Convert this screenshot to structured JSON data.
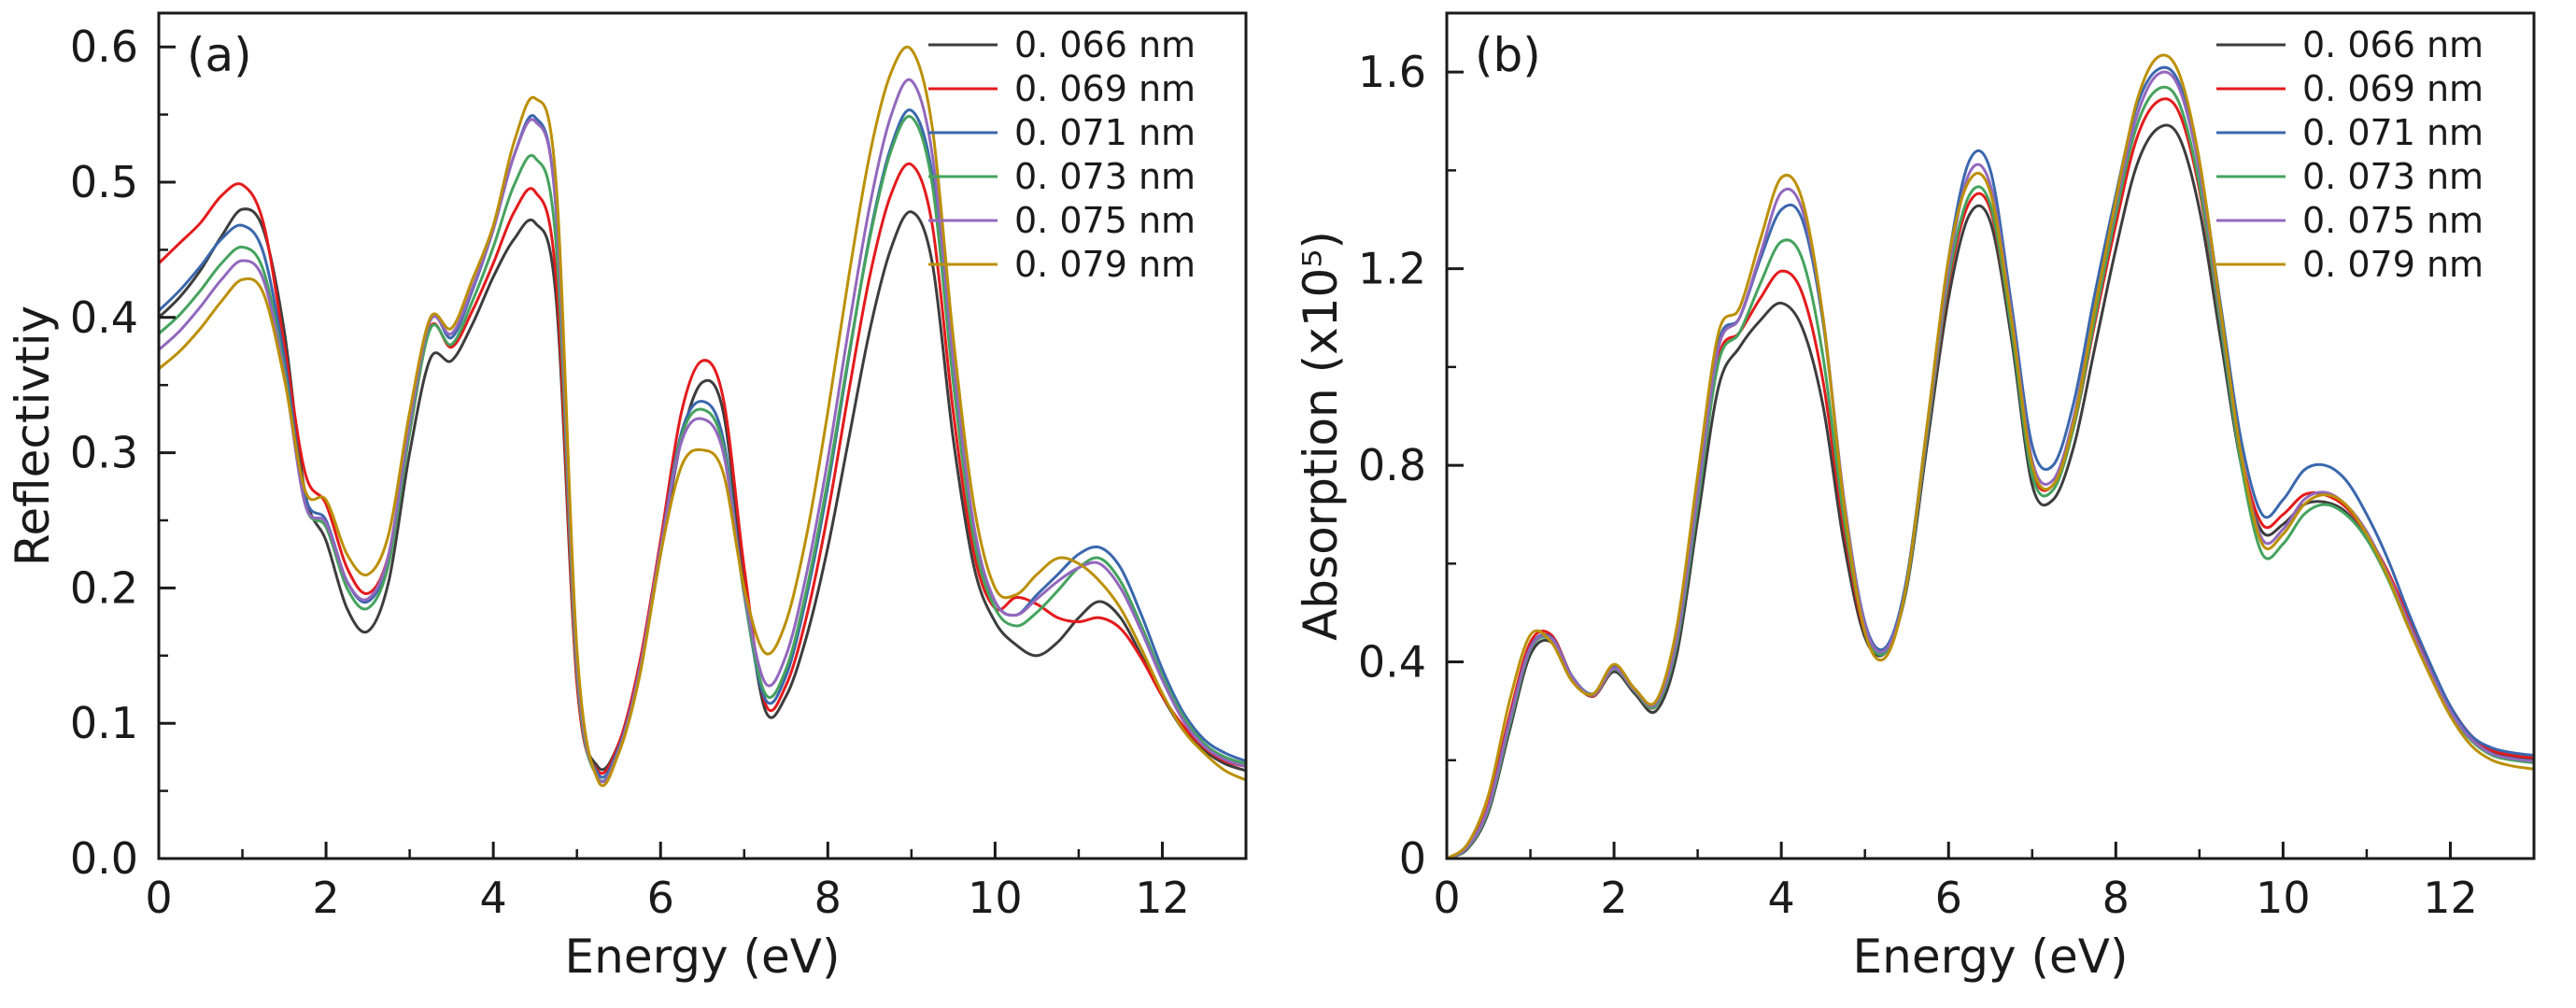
{
  "style": {
    "background": "#ffffff",
    "frame_color": "#1a1a1a",
    "text_color": "#1a1a1a"
  },
  "chart_data": [
    {
      "type": "line",
      "panel_label": "(a)",
      "xlabel": "Energy (eV)",
      "ylabel": "Reflectivtiy",
      "xlim": [
        0,
        13
      ],
      "ylim": [
        0,
        0.625
      ],
      "xtick_vals": [
        0,
        2,
        4,
        6,
        8,
        10,
        12
      ],
      "xtick_labels": [
        "0",
        "2",
        "4",
        "6",
        "8",
        "10",
        "12"
      ],
      "ytick_vals": [
        0.0,
        0.1,
        0.2,
        0.3,
        0.4,
        0.5,
        0.6
      ],
      "ytick_labels": [
        "0.0",
        "0.1",
        "0.2",
        "0.3",
        "0.4",
        "0.5",
        "0.6"
      ],
      "xminor_vals": [
        1,
        3,
        5,
        7,
        9,
        11,
        13
      ],
      "yminor_vals": [
        0.05,
        0.15,
        0.25,
        0.35,
        0.45,
        0.55
      ],
      "grid": false,
      "legend_position": "top-right",
      "x": [
        0,
        0.25,
        0.5,
        0.75,
        1,
        1.25,
        1.5,
        1.75,
        2,
        2.25,
        2.5,
        2.75,
        3,
        3.25,
        3.5,
        3.75,
        4,
        4.25,
        4.5,
        4.75,
        5,
        5.25,
        5.5,
        5.75,
        6,
        6.25,
        6.5,
        6.75,
        7,
        7.25,
        7.5,
        7.75,
        8,
        8.25,
        8.5,
        8.75,
        9,
        9.25,
        9.5,
        9.75,
        10,
        10.25,
        10.5,
        10.75,
        11,
        11.25,
        11.5,
        11.75,
        12,
        12.25,
        12.5,
        12.75,
        13
      ],
      "series": [
        {
          "name": "0. 066 nm",
          "color": "#3d3d3d",
          "values": [
            0.4,
            0.415,
            0.435,
            0.46,
            0.48,
            0.465,
            0.39,
            0.27,
            0.235,
            0.185,
            0.168,
            0.205,
            0.3,
            0.37,
            0.368,
            0.395,
            0.43,
            0.458,
            0.47,
            0.415,
            0.13,
            0.068,
            0.085,
            0.14,
            0.225,
            0.31,
            0.352,
            0.33,
            0.205,
            0.11,
            0.12,
            0.165,
            0.23,
            0.31,
            0.39,
            0.45,
            0.478,
            0.44,
            0.31,
            0.215,
            0.175,
            0.158,
            0.15,
            0.16,
            0.178,
            0.19,
            0.178,
            0.15,
            0.12,
            0.095,
            0.08,
            0.07,
            0.065
          ]
        },
        {
          "name": "0. 069 nm",
          "color": "#e41a1c",
          "values": [
            0.44,
            0.455,
            0.47,
            0.49,
            0.498,
            0.47,
            0.38,
            0.285,
            0.262,
            0.215,
            0.196,
            0.225,
            0.315,
            0.393,
            0.378,
            0.405,
            0.44,
            0.478,
            0.493,
            0.43,
            0.13,
            0.065,
            0.085,
            0.145,
            0.235,
            0.33,
            0.368,
            0.34,
            0.215,
            0.115,
            0.128,
            0.18,
            0.255,
            0.345,
            0.43,
            0.49,
            0.513,
            0.468,
            0.33,
            0.225,
            0.185,
            0.193,
            0.188,
            0.178,
            0.175,
            0.178,
            0.17,
            0.148,
            0.12,
            0.098,
            0.082,
            0.072,
            0.068
          ]
        },
        {
          "name": "0. 071 nm",
          "color": "#3a67ad",
          "values": [
            0.405,
            0.42,
            0.438,
            0.458,
            0.468,
            0.448,
            0.37,
            0.268,
            0.25,
            0.205,
            0.19,
            0.222,
            0.32,
            0.4,
            0.385,
            0.42,
            0.465,
            0.52,
            0.548,
            0.48,
            0.14,
            0.063,
            0.082,
            0.14,
            0.23,
            0.315,
            0.338,
            0.31,
            0.195,
            0.118,
            0.135,
            0.195,
            0.275,
            0.37,
            0.46,
            0.525,
            0.553,
            0.505,
            0.36,
            0.24,
            0.19,
            0.18,
            0.195,
            0.21,
            0.225,
            0.23,
            0.215,
            0.18,
            0.14,
            0.108,
            0.088,
            0.078,
            0.072
          ]
        },
        {
          "name": "0. 073 nm",
          "color": "#45a35e",
          "values": [
            0.388,
            0.402,
            0.42,
            0.44,
            0.452,
            0.435,
            0.362,
            0.262,
            0.245,
            0.2,
            0.185,
            0.218,
            0.315,
            0.392,
            0.38,
            0.412,
            0.452,
            0.498,
            0.518,
            0.455,
            0.138,
            0.06,
            0.08,
            0.138,
            0.228,
            0.312,
            0.332,
            0.305,
            0.195,
            0.122,
            0.14,
            0.2,
            0.28,
            0.372,
            0.458,
            0.522,
            0.548,
            0.498,
            0.352,
            0.235,
            0.185,
            0.172,
            0.182,
            0.198,
            0.215,
            0.222,
            0.205,
            0.172,
            0.135,
            0.105,
            0.085,
            0.075,
            0.07
          ]
        },
        {
          "name": "0. 075 nm",
          "color": "#9268bd",
          "values": [
            0.376,
            0.39,
            0.408,
            0.428,
            0.442,
            0.428,
            0.358,
            0.262,
            0.248,
            0.205,
            0.192,
            0.225,
            0.322,
            0.398,
            0.388,
            0.422,
            0.465,
            0.52,
            0.545,
            0.48,
            0.145,
            0.06,
            0.08,
            0.14,
            0.23,
            0.308,
            0.325,
            0.3,
            0.198,
            0.13,
            0.15,
            0.212,
            0.295,
            0.392,
            0.482,
            0.548,
            0.575,
            0.52,
            0.368,
            0.245,
            0.19,
            0.18,
            0.192,
            0.205,
            0.215,
            0.218,
            0.2,
            0.168,
            0.132,
            0.102,
            0.083,
            0.073,
            0.068
          ]
        },
        {
          "name": "0. 079 nm",
          "color": "#bc9005",
          "values": [
            0.362,
            0.375,
            0.392,
            0.412,
            0.428,
            0.418,
            0.355,
            0.272,
            0.265,
            0.225,
            0.21,
            0.24,
            0.33,
            0.4,
            0.392,
            0.428,
            0.468,
            0.53,
            0.562,
            0.5,
            0.155,
            0.058,
            0.078,
            0.135,
            0.225,
            0.29,
            0.302,
            0.285,
            0.2,
            0.152,
            0.175,
            0.24,
            0.33,
            0.43,
            0.52,
            0.58,
            0.598,
            0.54,
            0.385,
            0.26,
            0.2,
            0.195,
            0.21,
            0.222,
            0.218,
            0.205,
            0.185,
            0.155,
            0.122,
            0.095,
            0.078,
            0.065,
            0.058
          ]
        }
      ]
    },
    {
      "type": "line",
      "panel_label": "(b)",
      "xlabel": "Energy (eV)",
      "ylabel": "Absorption (x10⁵)",
      "xlim": [
        0,
        13
      ],
      "ylim": [
        0,
        1.72
      ],
      "xtick_vals": [
        0,
        2,
        4,
        6,
        8,
        10,
        12
      ],
      "xtick_labels": [
        "0",
        "2",
        "4",
        "6",
        "8",
        "10",
        "12"
      ],
      "ytick_vals": [
        0,
        0.4,
        0.8,
        1.2,
        1.6
      ],
      "ytick_labels": [
        "0",
        "0.4",
        "0.8",
        "1.2",
        "1.6"
      ],
      "xminor_vals": [
        1,
        3,
        5,
        7,
        9,
        11,
        13
      ],
      "yminor_vals": [
        0.2,
        0.6,
        1.0,
        1.4
      ],
      "grid": false,
      "legend_position": "top-right",
      "x": [
        0,
        0.25,
        0.5,
        0.75,
        1,
        1.25,
        1.5,
        1.75,
        2,
        2.25,
        2.5,
        2.75,
        3,
        3.25,
        3.5,
        3.75,
        4,
        4.25,
        4.5,
        4.75,
        5,
        5.25,
        5.5,
        5.75,
        6,
        6.25,
        6.5,
        6.75,
        7,
        7.25,
        7.5,
        7.75,
        8,
        8.25,
        8.5,
        8.75,
        9,
        9.25,
        9.5,
        9.75,
        10,
        10.25,
        10.5,
        10.75,
        11,
        11.25,
        11.5,
        11.75,
        12,
        12.25,
        12.5,
        12.75,
        13
      ],
      "series": [
        {
          "name": "0. 066 nm",
          "color": "#3d3d3d",
          "values": [
            0.0,
            0.02,
            0.095,
            0.26,
            0.415,
            0.44,
            0.365,
            0.33,
            0.38,
            0.335,
            0.3,
            0.415,
            0.69,
            0.96,
            1.04,
            1.095,
            1.13,
            1.08,
            0.92,
            0.64,
            0.45,
            0.42,
            0.55,
            0.85,
            1.14,
            1.31,
            1.295,
            1.06,
            0.76,
            0.73,
            0.84,
            1.04,
            1.24,
            1.41,
            1.485,
            1.47,
            1.32,
            1.06,
            0.8,
            0.665,
            0.68,
            0.72,
            0.725,
            0.705,
            0.65,
            0.575,
            0.48,
            0.385,
            0.3,
            0.245,
            0.215,
            0.205,
            0.2
          ]
        },
        {
          "name": "0. 069 nm",
          "color": "#e41a1c",
          "values": [
            0.0,
            0.025,
            0.11,
            0.29,
            0.44,
            0.455,
            0.37,
            0.33,
            0.385,
            0.34,
            0.31,
            0.44,
            0.73,
            1.02,
            1.07,
            1.14,
            1.195,
            1.15,
            0.97,
            0.67,
            0.46,
            0.425,
            0.56,
            0.87,
            1.17,
            1.335,
            1.32,
            1.08,
            0.79,
            0.76,
            0.88,
            1.09,
            1.29,
            1.465,
            1.54,
            1.52,
            1.36,
            1.09,
            0.82,
            0.68,
            0.7,
            0.74,
            0.74,
            0.715,
            0.66,
            0.585,
            0.49,
            0.395,
            0.31,
            0.25,
            0.22,
            0.21,
            0.205
          ]
        },
        {
          "name": "0. 071 nm",
          "color": "#3a67ad",
          "values": [
            0.0,
            0.025,
            0.105,
            0.28,
            0.43,
            0.45,
            0.37,
            0.335,
            0.39,
            0.345,
            0.315,
            0.45,
            0.75,
            1.05,
            1.1,
            1.22,
            1.32,
            1.3,
            1.09,
            0.73,
            0.48,
            0.43,
            0.57,
            0.89,
            1.22,
            1.42,
            1.4,
            1.13,
            0.84,
            0.8,
            0.93,
            1.15,
            1.35,
            1.53,
            1.605,
            1.58,
            1.41,
            1.13,
            0.85,
            0.7,
            0.73,
            0.79,
            0.8,
            0.77,
            0.7,
            0.61,
            0.5,
            0.4,
            0.31,
            0.25,
            0.225,
            0.215,
            0.21
          ]
        },
        {
          "name": "0. 073 nm",
          "color": "#45a35e",
          "values": [
            0.0,
            0.022,
            0.1,
            0.27,
            0.425,
            0.445,
            0.368,
            0.332,
            0.385,
            0.34,
            0.31,
            0.435,
            0.72,
            1.01,
            1.07,
            1.17,
            1.255,
            1.22,
            1.02,
            0.69,
            0.465,
            0.42,
            0.555,
            0.87,
            1.18,
            1.35,
            1.33,
            1.08,
            0.78,
            0.75,
            0.88,
            1.1,
            1.31,
            1.49,
            1.565,
            1.54,
            1.37,
            1.09,
            0.8,
            0.62,
            0.64,
            0.7,
            0.72,
            0.7,
            0.65,
            0.57,
            0.47,
            0.38,
            0.295,
            0.24,
            0.21,
            0.2,
            0.195
          ]
        },
        {
          "name": "0. 075 nm",
          "color": "#9268bd",
          "values": [
            0.0,
            0.024,
            0.105,
            0.278,
            0.428,
            0.448,
            0.368,
            0.333,
            0.387,
            0.342,
            0.315,
            0.445,
            0.74,
            1.04,
            1.1,
            1.23,
            1.355,
            1.32,
            1.1,
            0.73,
            0.475,
            0.425,
            0.56,
            0.88,
            1.2,
            1.395,
            1.37,
            1.11,
            0.81,
            0.77,
            0.9,
            1.12,
            1.33,
            1.51,
            1.595,
            1.57,
            1.4,
            1.11,
            0.82,
            0.65,
            0.67,
            0.73,
            0.745,
            0.72,
            0.665,
            0.58,
            0.48,
            0.385,
            0.3,
            0.243,
            0.213,
            0.203,
            0.198
          ]
        },
        {
          "name": "0. 079 nm",
          "color": "#bc9005",
          "values": [
            0.0,
            0.03,
            0.13,
            0.32,
            0.455,
            0.44,
            0.36,
            0.335,
            0.395,
            0.345,
            0.32,
            0.47,
            0.78,
            1.07,
            1.12,
            1.26,
            1.385,
            1.34,
            1.1,
            0.72,
            0.46,
            0.41,
            0.56,
            0.89,
            1.22,
            1.38,
            1.355,
            1.1,
            0.8,
            0.76,
            0.89,
            1.12,
            1.34,
            1.54,
            1.63,
            1.6,
            1.42,
            1.12,
            0.82,
            0.64,
            0.66,
            0.72,
            0.74,
            0.72,
            0.66,
            0.575,
            0.47,
            0.375,
            0.29,
            0.23,
            0.2,
            0.188,
            0.182
          ]
        }
      ]
    }
  ]
}
